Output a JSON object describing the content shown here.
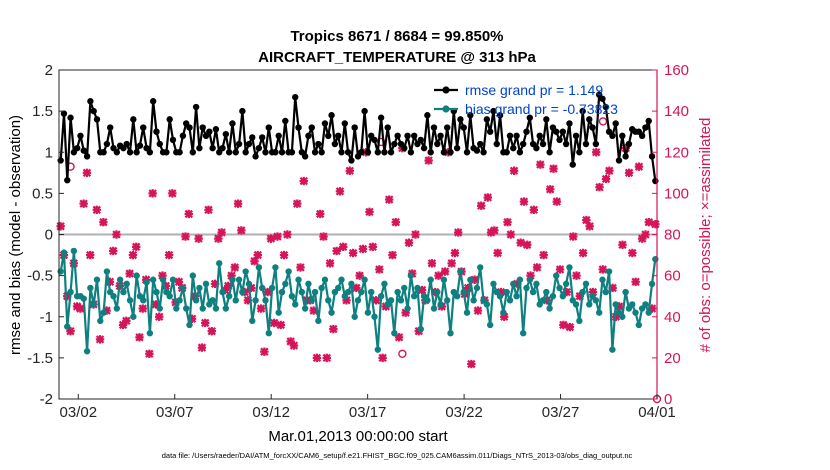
{
  "chart_data": {
    "type": "line",
    "title_line1": "Tropics 8671 / 8684 = 99.850%",
    "title_line2": "AIRCRAFT_TEMPERATURE @ 313 hPa",
    "xlabel": "Mar.01,2013 00:00:00 start",
    "ylabel_left": "rmse and bias (model - observation)",
    "ylabel_right": "# of obs: o=possible; ×=assimilated",
    "footer": "data file: /Users/raeder/DAI/ATM_forcXX/CAM6_setup/f.e21.FHIST_BGC.f09_025.CAM6assim.011/Diags_NTrS_2013-03/obs_diag_output.nc",
    "x_ticks": [
      "03/02",
      "03/07",
      "03/12",
      "03/17",
      "03/22",
      "03/27",
      "04/01"
    ],
    "x_tick_days": [
      1,
      6,
      11,
      16,
      21,
      26,
      31
    ],
    "xlim": [
      0,
      31
    ],
    "ylim_left": [
      -2,
      2
    ],
    "yticks_left": [
      "-2",
      "-1.5",
      "-1",
      "-0.5",
      "0",
      "0.5",
      "1",
      "1.5",
      "2"
    ],
    "ylim_right": [
      0,
      160
    ],
    "yticks_right": [
      "0",
      "20",
      "40",
      "60",
      "80",
      "100",
      "120",
      "140",
      "160"
    ],
    "colors": {
      "rmse": "#000000",
      "bias": "#0e8080",
      "obs": "#d5145a",
      "legend_text": "#0044cc",
      "zero_line": "#b0b0b0"
    },
    "series": [
      {
        "name": "rmse",
        "legend": "rmse grand pr = 1.149",
        "values": [
          0.9,
          1.47,
          0.66,
          1.42,
          1.0,
          1.05,
          1.2,
          1.02,
          0.95,
          1.62,
          1.5,
          1.4,
          1.0,
          1.0,
          1.1,
          1.3,
          1.05,
          1.0,
          1.08,
          1.05,
          1.1,
          1.0,
          1.4,
          1.0,
          1.08,
          1.3,
          1.05,
          1.0,
          1.62,
          1.25,
          1.1,
          1.0,
          1.0,
          1.4,
          1.15,
          1.0,
          1.0,
          1.2,
          1.35,
          1.3,
          1.0,
          1.55,
          1.05,
          1.3,
          1.2,
          1.25,
          1.05,
          1.28,
          1.0,
          1.05,
          1.22,
          1.0,
          1.35,
          1.0,
          1.1,
          1.5,
          1.0,
          1.1,
          1.18,
          0.95,
          1.05,
          1.18,
          1.0,
          1.3,
          1.0,
          1.0,
          1.2,
          1.0,
          1.38,
          1.0,
          1.0,
          1.67,
          1.3,
          1.0,
          0.95,
          1.2,
          1.3,
          1.0,
          1.1,
          1.0,
          1.35,
          1.2,
          1.45,
          1.1,
          1.2,
          1.0,
          1.35,
          1.0,
          0.9,
          1.3,
          0.95,
          1.0,
          1.5,
          1.0,
          1.2,
          1.15,
          1.0,
          1.42,
          1.0,
          1.3,
          1.0,
          1.1,
          1.2,
          1.1,
          1.05,
          1.2,
          1.0,
          1.2,
          1.1,
          1.15,
          1.05,
          1.45,
          1.0,
          1.3,
          1.1,
          1.2,
          1.0,
          1.3,
          1.0,
          1.5,
          1.05,
          1.4,
          1.3,
          1.0,
          1.45,
          1.05,
          1.02,
          1.1,
          1.0,
          1.4,
          1.25,
          1.5,
          1.1,
          1.45,
          1.0,
          1.0,
          1.2,
          1.05,
          1.2,
          1.0,
          1.1,
          1.25,
          1.42,
          1.1,
          1.05,
          1.2,
          1.1,
          1.4,
          1.0,
          1.3,
          1.25,
          1.15,
          1.25,
          1.1,
          1.35,
          0.85,
          1.2,
          1.0,
          1.5,
          1.1,
          1.4,
          1.3,
          1.1,
          1.7,
          1.65,
          1.55,
          1.25,
          1.2,
          1.35,
          0.9,
          1.2,
          0.95,
          1.1,
          1.28,
          1.25,
          1.25,
          1.2,
          1.3,
          1.38,
          0.95,
          0.65
        ]
      },
      {
        "name": "bias",
        "legend": "bias grand pr = -0.73823",
        "values": [
          -0.45,
          -0.22,
          -1.12,
          -0.7,
          -0.2,
          -0.75,
          -0.75,
          -0.78,
          -1.42,
          -0.65,
          -0.85,
          -0.55,
          -1.05,
          -0.95,
          -0.45,
          -0.7,
          -0.75,
          -0.9,
          -0.55,
          -0.7,
          -0.6,
          -0.8,
          -1.0,
          -0.5,
          -0.75,
          -0.8,
          -0.58,
          -1.2,
          -0.55,
          -0.7,
          -0.9,
          -0.55,
          -0.7,
          -0.75,
          -0.55,
          -0.9,
          -0.8,
          -0.65,
          -0.9,
          -1.1,
          -0.5,
          -0.8,
          -0.65,
          -0.9,
          -0.6,
          -0.85,
          -0.8,
          -0.9,
          -0.35,
          -0.7,
          -0.9,
          -0.75,
          -0.55,
          -0.8,
          -0.55,
          -0.7,
          -0.45,
          -0.6,
          -1.05,
          -0.8,
          -0.4,
          -0.65,
          -0.8,
          -1.2,
          -0.65,
          -0.4,
          -0.95,
          -0.7,
          -0.6,
          -0.45,
          -0.75,
          -0.85,
          -0.55,
          -0.7,
          -0.9,
          -0.6,
          -0.8,
          -0.7,
          -1.05,
          -0.65,
          -0.55,
          -0.8,
          -0.95,
          -0.7,
          -0.65,
          -0.55,
          -0.75,
          -0.7,
          -0.6,
          -1.0,
          -0.8,
          -0.7,
          -0.55,
          -0.95,
          -0.7,
          -1.0,
          -1.4,
          -0.75,
          -0.6,
          -0.85,
          -0.8,
          -1.2,
          -0.7,
          -0.8,
          -0.65,
          -0.9,
          -0.5,
          -0.75,
          -0.65,
          -1.15,
          -0.75,
          -0.8,
          -0.55,
          -0.9,
          -0.7,
          -0.85,
          -0.55,
          -0.8,
          -1.2,
          -0.7,
          -0.75,
          -0.45,
          -0.7,
          -0.95,
          -0.55,
          -0.8,
          -0.65,
          -0.4,
          -0.8,
          -0.85,
          -1.1,
          -0.6,
          -0.7,
          -0.75,
          -0.95,
          -0.7,
          -0.8,
          -0.6,
          -0.75,
          -0.55,
          -1.2,
          -0.65,
          -0.55,
          -0.7,
          -0.6,
          -0.85,
          -0.8,
          -0.7,
          -0.9,
          -0.75,
          -0.5,
          -0.65,
          -0.75,
          -0.6,
          -0.4,
          -0.8,
          -0.85,
          -1.05,
          -0.7,
          -0.6,
          -0.85,
          -0.75,
          -0.8,
          -0.95,
          -0.55,
          -0.7,
          -0.45,
          -1.4,
          -0.85,
          -0.95,
          -1.0,
          -0.7,
          -0.9,
          -0.85,
          -0.95,
          -1.1,
          -0.9,
          -0.85,
          -0.95,
          -0.6,
          -0.3
        ]
      }
    ],
    "obs_assimilated": [
      84,
      70,
      50,
      33,
      66,
      45,
      44,
      95,
      110,
      70,
      46,
      92,
      29,
      86,
      43,
      57,
      72,
      80,
      55,
      36,
      38,
      61,
      70,
      74,
      30,
      44,
      58,
      22,
      100,
      46,
      40,
      60,
      55,
      70,
      100,
      47,
      57,
      54,
      79,
      90,
      39,
      50,
      78,
      25,
      37,
      92,
      33,
      56,
      78,
      81,
      53,
      55,
      60,
      64,
      95,
      82,
      52,
      48,
      54,
      67,
      70,
      44,
      23,
      52,
      78,
      37,
      79,
      36,
      70,
      80,
      28,
      26,
      95,
      64,
      106,
      48,
      48,
      43,
      20,
      90,
      79,
      20,
      66,
      34,
      72,
      101,
      74,
      48,
      111,
      71,
      54,
      60,
      73,
      120,
      91,
      74,
      48,
      63,
      20,
      45,
      97,
      70,
      86,
      30,
      122,
      42,
      76,
      61,
      80,
      33,
      53,
      48,
      116,
      66,
      52,
      60,
      45,
      62,
      120,
      66,
      71,
      81,
      62,
      51,
      54,
      17,
      58,
      43,
      94,
      48,
      98,
      81,
      82,
      71,
      52,
      40,
      86,
      80,
      111,
      56,
      76,
      96,
      75,
      60,
      92,
      64,
      114,
      70,
      48,
      102,
      112,
      96,
      63,
      36,
      52,
      35,
      79,
      60,
      50,
      71,
      87,
      84,
      52,
      120,
      103,
      63,
      107,
      111,
      54,
      40,
      45,
      75,
      122,
      110,
      71,
      57,
      113,
      78,
      80,
      86,
      44,
      85
    ],
    "obs_possible_extra": [
      {
        "day": 0.6,
        "count": 113
      },
      {
        "day": 16.7,
        "count": 125
      },
      {
        "day": 17.8,
        "count": 22
      },
      {
        "day": 28.2,
        "count": 135
      },
      {
        "day": 31.0,
        "count": 0
      }
    ]
  }
}
